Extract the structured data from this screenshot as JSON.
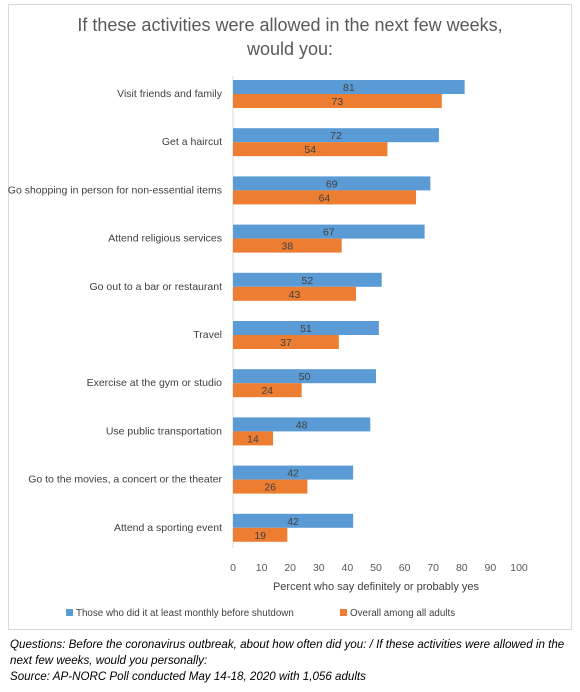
{
  "chart_data": {
    "type": "bar",
    "orientation": "horizontal",
    "title_lines": [
      "If these activities were allowed in the next few weeks,",
      "would you:"
    ],
    "categories": [
      "Visit friends and family",
      "Get a haircut",
      "Go shopping in person for non-essential items",
      "Attend religious services",
      "Go out to a bar or restaurant",
      "Travel",
      "Exercise at the gym or studio",
      "Use public transportation",
      "Go to the movies, a concert or the theater",
      "Attend a sporting event"
    ],
    "series": [
      {
        "name": "Those who did it at least monthly before shutdown",
        "color": "#5b9bd5",
        "values": [
          81,
          72,
          69,
          67,
          52,
          51,
          50,
          48,
          42,
          42
        ]
      },
      {
        "name": "Overall among all adults",
        "color": "#ed7d31",
        "values": [
          73,
          54,
          64,
          38,
          43,
          37,
          24,
          14,
          26,
          19
        ]
      }
    ],
    "xlabel": "Percent who say definitely or probably yes",
    "xlim": [
      0,
      100
    ],
    "xticks": [
      0,
      10,
      20,
      30,
      40,
      50,
      60,
      70,
      80,
      90,
      100
    ],
    "grid": false,
    "legend_position": "bottom"
  },
  "notes": {
    "questions": "Questions: Before the coronavirus outbreak, about how often did you: / If these activities were allowed in the next few weeks, would you personally:",
    "source": "Source: AP-NORC Poll conducted May 14-18, 2020 with 1,056 adults"
  }
}
